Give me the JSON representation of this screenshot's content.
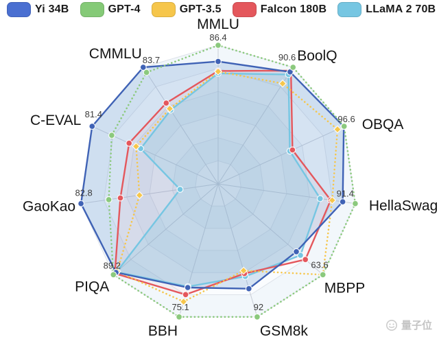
{
  "legend": {
    "position": "top",
    "items": [
      {
        "label": "Yi 34B",
        "color": "#4a6fd1"
      },
      {
        "label": "GPT-4",
        "color": "#85ca77"
      },
      {
        "label": "GPT-3.5",
        "color": "#f6c64b"
      },
      {
        "label": "Falcon 180B",
        "color": "#e4575c"
      },
      {
        "label": "LLaMA 2 70B",
        "color": "#76c6e2"
      }
    ]
  },
  "chart_data": {
    "type": "radar",
    "grid": {
      "rings": 6,
      "shape": "polygon",
      "spokes": 11
    },
    "normalization": "each axis scaled so the best model sits on the outer ring; outer-ring value shown as the axis label",
    "axes": [
      {
        "name": "MMLU",
        "value_label": "86.4",
        "max": 86.4
      },
      {
        "name": "BoolQ",
        "value_label": "90.6",
        "max": 90.6
      },
      {
        "name": "OBQA",
        "value_label": "96.6",
        "max": 96.6
      },
      {
        "name": "HellaSwag",
        "value_label": "91.4",
        "max": 91.4
      },
      {
        "name": "MBPP",
        "value_label": "63.6",
        "max": 63.6
      },
      {
        "name": "GSM8k",
        "value_label": "92",
        "max": 92
      },
      {
        "name": "BBH",
        "value_label": "75.1",
        "max": 75.1
      },
      {
        "name": "PIQA",
        "value_label": "89.2",
        "max": 89.2
      },
      {
        "name": "GaoKao",
        "value_label": "82.8",
        "max": 82.8
      },
      {
        "name": "C-EVAL",
        "value_label": "81.4",
        "max": 81.4
      },
      {
        "name": "CMMLU",
        "value_label": "83.7",
        "max": 83.7
      }
    ],
    "series": [
      {
        "name": "Yi 34B",
        "color": "#3f62b5",
        "line": "solid",
        "fill": "rgba(108,155,210,0.26)",
        "dot": "circle",
        "values": [
          76.3,
          87,
          96.3,
          83,
          47.5,
          72.5,
          58.5,
          87,
          82.8,
          81.4,
          83.7
        ]
      },
      {
        "name": "GPT-4",
        "color": "#8bc97d",
        "line": "dotted",
        "fill": "none",
        "dot": "circle",
        "values": [
          86.4,
          90.6,
          96.6,
          91.4,
          63.6,
          92,
          75.1,
          89.2,
          66,
          68.7,
          80
        ]
      },
      {
        "name": "GPT-3.5",
        "color": "#f6c64b",
        "line": "dotted",
        "fill": "none",
        "dot": "diamond",
        "values": [
          70,
          78,
          91.5,
          76,
          63.6,
          60,
          66.5,
          86,
          47.5,
          53,
          54
        ]
      },
      {
        "name": "Falcon 180B",
        "color": "#e4575c",
        "line": "solid",
        "fill": "rgba(228,87,92,0.05)",
        "dot": "circle",
        "values": [
          70.4,
          88,
          57,
          75,
          53,
          62,
          62.5,
          88,
          59,
          57.5,
          58
        ]
      },
      {
        "name": "LLaMA 2 70B",
        "color": "#76c6e2",
        "line": "solid",
        "fill": "rgba(118,198,226,0.20)",
        "dot": "circle",
        "values": [
          68.9,
          85,
          55,
          68,
          50,
          64,
          58,
          86.5,
          23,
          50,
          53
        ]
      }
    ]
  },
  "watermark": {
    "text": "量子位"
  }
}
